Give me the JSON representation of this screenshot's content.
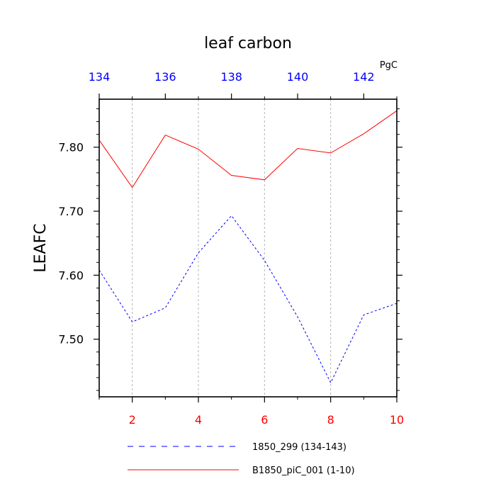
{
  "chart_data": {
    "type": "line",
    "title": "leaf carbon",
    "units": "PgC",
    "ylabel": "LEAFC",
    "xlabel": "",
    "ylim": [
      7.41,
      7.875
    ],
    "y_ticks": [
      "7.50",
      "7.60",
      "7.70",
      "7.80"
    ],
    "y_tick_values": [
      7.5,
      7.6,
      7.7,
      7.8
    ],
    "x_bottom": {
      "range": [
        1,
        10
      ],
      "tick_values": [
        2,
        4,
        6,
        8,
        10
      ],
      "tick_labels": [
        "2",
        "4",
        "6",
        "8",
        "10"
      ],
      "color": "#ff0000"
    },
    "x_top": {
      "range": [
        134,
        143
      ],
      "tick_values": [
        134,
        136,
        138,
        140,
        142
      ],
      "tick_labels": [
        "134",
        "136",
        "138",
        "140",
        "142"
      ],
      "color": "#0000ff"
    },
    "vertical_grid": true,
    "series": [
      {
        "name": "1850_299 (134-143)",
        "axis": "top",
        "color": "#0000ff",
        "dash": "dashed",
        "x": [
          134,
          135,
          136,
          137,
          138,
          139,
          140,
          141,
          142,
          143
        ],
        "y": [
          7.608,
          7.527,
          7.549,
          7.635,
          7.693,
          7.623,
          7.535,
          7.432,
          7.538,
          7.556
        ]
      },
      {
        "name": "B1850_piC_001 (1-10)",
        "axis": "bottom",
        "color": "#ff0000",
        "dash": "solid",
        "x": [
          1,
          2,
          3,
          4,
          5,
          6,
          7,
          8,
          9,
          10
        ],
        "y": [
          7.811,
          7.737,
          7.819,
          7.797,
          7.756,
          7.749,
          7.798,
          7.791,
          7.821,
          7.857
        ]
      }
    ],
    "legend_position": "bottom"
  }
}
